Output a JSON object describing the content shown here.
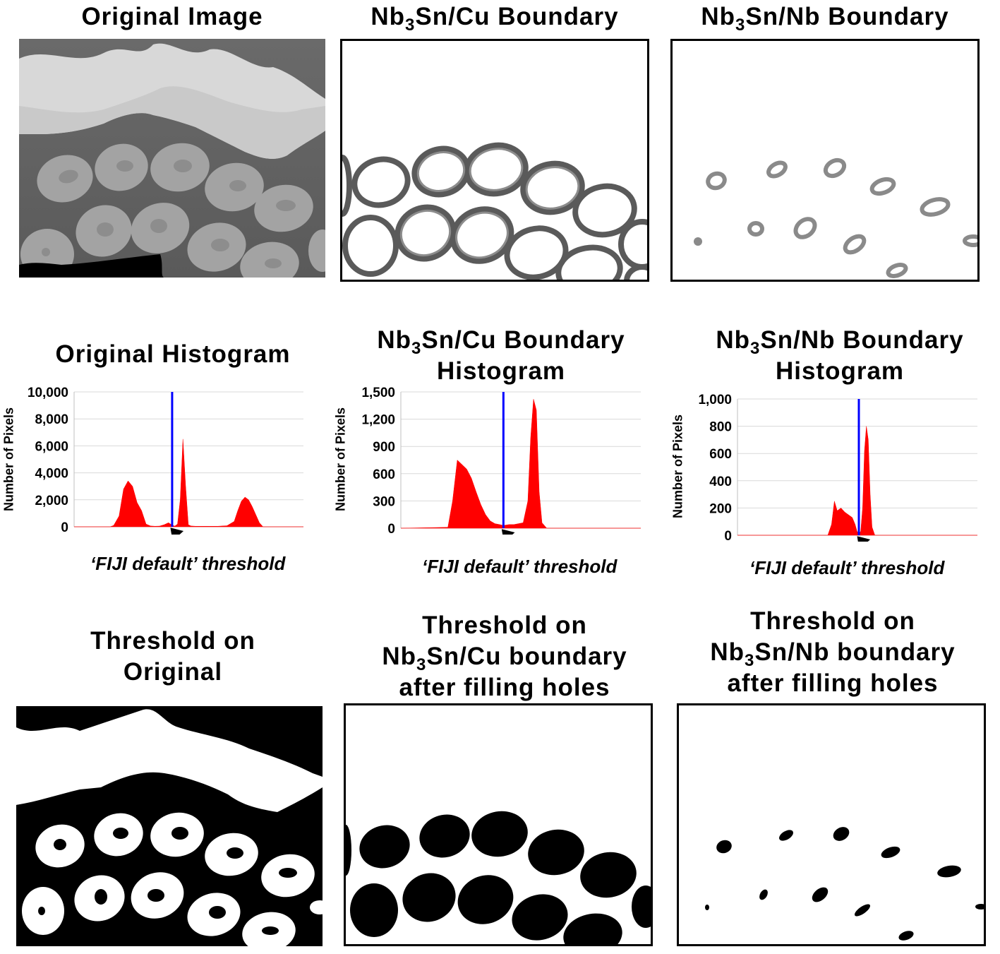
{
  "row1": {
    "original_title": "Original Image",
    "cu_title_pre": "Nb",
    "cu_title_sub": "3",
    "cu_title_post": "Sn/Cu Boundary",
    "nb_title_pre": "Nb",
    "nb_title_sub": "3",
    "nb_title_post": "Sn/Nb Boundary"
  },
  "row2": {
    "original_hist_title": "Original Histogram",
    "cu_hist_title_pre": "Nb",
    "cu_hist_title_sub": "3",
    "cu_hist_title_post": "Sn/Cu Boundary",
    "cu_hist_title_line2": "Histogram",
    "nb_hist_title_pre": "Nb",
    "nb_hist_title_sub": "3",
    "nb_hist_title_post": "Sn/Nb Boundary",
    "nb_hist_title_line2": "Histogram",
    "threshold_label": "‘FIJI default’ threshold"
  },
  "row3": {
    "orig_line1": "Threshold on",
    "orig_line2": "Original",
    "cu_line1": "Threshold on",
    "cu_line2_pre": "Nb",
    "cu_line2_sub": "3",
    "cu_line2_post": "Sn/Cu boundary",
    "cu_line3": "after filling holes",
    "nb_line1": "Threshold on",
    "nb_line2_pre": "Nb",
    "nb_line2_sub": "3",
    "nb_line2_post": "Sn/Nb boundary",
    "nb_line3": "after filling holes"
  },
  "colors": {
    "histogram_fill": "#ff0000",
    "threshold_line": "#0000ff",
    "grid": "#d9d9d9"
  },
  "chart_data": [
    {
      "type": "area",
      "name": "original-histogram",
      "ylabel": "Number of Pixels",
      "yticks": [
        "0",
        "2,000",
        "4,000",
        "6,000",
        "8,000",
        "10,000"
      ],
      "ylim": [
        0,
        10000
      ],
      "xlim": [
        0,
        255
      ],
      "threshold_x": 109,
      "x": [
        0,
        40,
        44,
        50,
        55,
        60,
        65,
        70,
        75,
        80,
        85,
        90,
        95,
        100,
        105,
        109,
        112,
        115,
        118,
        121,
        124,
        127,
        130,
        135,
        140,
        150,
        160,
        170,
        178,
        182,
        186,
        190,
        194,
        198,
        202,
        206,
        210,
        255
      ],
      "values": [
        0,
        0,
        100,
        800,
        2800,
        3400,
        3000,
        1800,
        1200,
        200,
        60,
        40,
        50,
        150,
        300,
        120,
        50,
        200,
        2000,
        6500,
        3000,
        150,
        60,
        40,
        40,
        40,
        40,
        80,
        400,
        1200,
        1900,
        2200,
        2000,
        1500,
        900,
        300,
        0,
        0
      ],
      "grid": true
    },
    {
      "type": "area",
      "name": "cu-boundary-histogram",
      "ylabel": "Number of Pixels",
      "yticks": [
        "0",
        "300",
        "600",
        "900",
        "1,200",
        "1,500"
      ],
      "ylim": [
        0,
        1500
      ],
      "xlim": [
        0,
        255
      ],
      "threshold_x": 109,
      "x": [
        0,
        50,
        55,
        60,
        65,
        70,
        75,
        80,
        85,
        90,
        95,
        100,
        105,
        109,
        115,
        120,
        125,
        130,
        135,
        138,
        141,
        144,
        147,
        150,
        155,
        255
      ],
      "values": [
        0,
        10,
        300,
        750,
        700,
        650,
        550,
        400,
        260,
        150,
        80,
        50,
        40,
        30,
        40,
        40,
        50,
        60,
        300,
        1000,
        1420,
        1300,
        400,
        60,
        0,
        0
      ],
      "grid": true
    },
    {
      "type": "area",
      "name": "nb-boundary-histogram",
      "ylabel": "Number of Pixels",
      "yticks": [
        "0",
        "200",
        "400",
        "600",
        "800",
        "1,000"
      ],
      "ylim": [
        0,
        1000
      ],
      "xlim": [
        0,
        255
      ],
      "threshold_x": 129,
      "x": [
        0,
        96,
        100,
        103,
        106,
        110,
        114,
        118,
        122,
        125,
        127,
        129,
        131,
        133,
        135,
        137,
        139,
        141,
        143,
        146,
        255
      ],
      "values": [
        0,
        0,
        80,
        250,
        180,
        200,
        170,
        150,
        130,
        80,
        30,
        10,
        30,
        200,
        620,
        800,
        700,
        300,
        60,
        0,
        0
      ],
      "grid": true
    }
  ]
}
